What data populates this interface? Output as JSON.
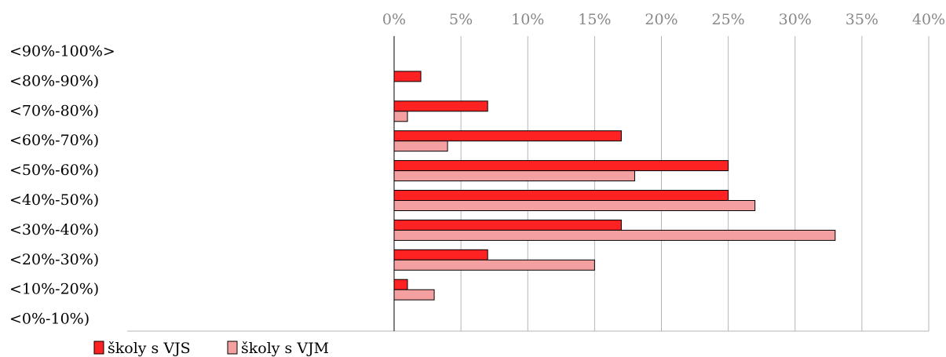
{
  "chart_data": {
    "type": "bar",
    "orientation": "horizontal",
    "categories": [
      "<90%-100%>",
      "<80%-90%)",
      "<70%-80%)",
      "<60%-70%)",
      "<50%-60%)",
      "<40%-50%)",
      "<30%-40%)",
      "<20%-30%)",
      "<10%-20%)",
      "<0%-10%)"
    ],
    "series": [
      {
        "name": "školy s VJS",
        "color": "#ff2222",
        "values": [
          0,
          2,
          7,
          17,
          25,
          25,
          17,
          7,
          1,
          0
        ]
      },
      {
        "name": "školy s VJM",
        "color": "#f4a0a0",
        "values": [
          0,
          0,
          1,
          4,
          18,
          27,
          33,
          15,
          3,
          0
        ]
      }
    ],
    "xlim": [
      0,
      40
    ],
    "xticks": [
      0,
      5,
      10,
      15,
      20,
      25,
      30,
      35,
      40
    ],
    "xtick_labels": [
      "0%",
      "5%",
      "10%",
      "15%",
      "20%",
      "25%",
      "30%",
      "35%",
      "40%"
    ],
    "grid": true,
    "legend_position": "bottom-left"
  }
}
